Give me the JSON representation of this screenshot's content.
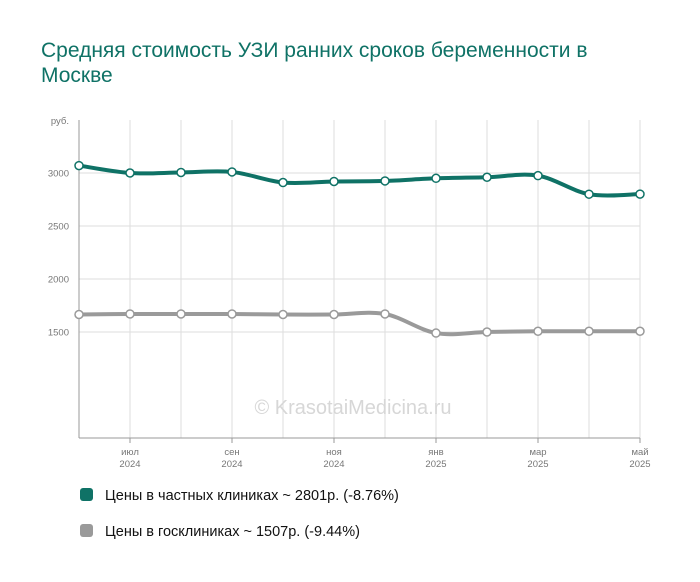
{
  "chart_data": {
    "type": "line",
    "title": "Средняя стоимость УЗИ ранних сроков беременности в Москве",
    "y_unit_label": "руб.",
    "ylim": [
      500,
      3500
    ],
    "y_ticks": [
      {
        "value": 1500,
        "label": "1500"
      },
      {
        "value": 2000,
        "label": "2000"
      },
      {
        "value": 2500,
        "label": "2500"
      },
      {
        "value": 3000,
        "label": "3000"
      }
    ],
    "x_count": 12,
    "x_tick_labels": [
      {
        "index": 1,
        "month": "июл",
        "year": "2024"
      },
      {
        "index": 3,
        "month": "сен",
        "year": "2024"
      },
      {
        "index": 5,
        "month": "ноя",
        "year": "2024"
      },
      {
        "index": 7,
        "month": "янв",
        "year": "2025"
      },
      {
        "index": 9,
        "month": "мар",
        "year": "2025"
      },
      {
        "index": 11,
        "month": "май",
        "year": "2025"
      }
    ],
    "grid": true,
    "legend_position": "bottom",
    "watermark": "© KrasotaiMedicina.ru",
    "series": [
      {
        "name": "Цены в частных клиниках",
        "color": "#0f7266",
        "values": [
          3070,
          3000,
          3005,
          3010,
          2910,
          2920,
          2925,
          2950,
          2960,
          2975,
          2800,
          2801
        ]
      },
      {
        "name": "Цены в госклиниках",
        "color": "#9a9a9a",
        "values": [
          1665,
          1670,
          1670,
          1670,
          1665,
          1665,
          1670,
          1490,
          1500,
          1507,
          1507,
          1507
        ]
      }
    ]
  },
  "legend": [
    {
      "text": "Цены в частных клиниках ~ 2801р. (-8.76%)",
      "color": "#0f7266"
    },
    {
      "text": "Цены в госклиниках ~ 1507р. (-9.44%)",
      "color": "#9a9a9a"
    }
  ]
}
